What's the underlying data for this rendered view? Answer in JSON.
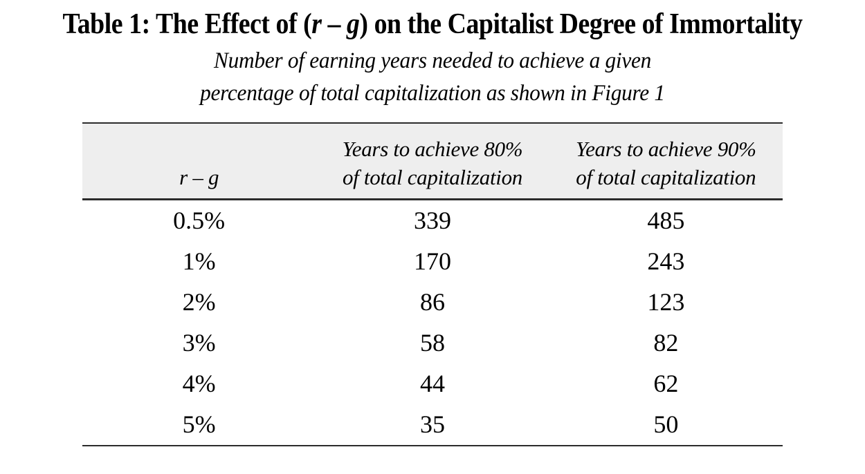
{
  "page": {
    "background": "#ffffff",
    "text_color": "#000000"
  },
  "title": {
    "part1": "Table 1: The Effect of (",
    "var_r": "r",
    "dash": " – ",
    "var_g": "g",
    "part2": ") on the Capitalist Degree of Immortality"
  },
  "subtitle": {
    "line1": "Number of earning years needed to achieve a given",
    "line2": "percentage of total capitalization as shown in Figure 1"
  },
  "table": {
    "header_background": "#eeeeee",
    "rule_color": "#2b2b2b",
    "columns": {
      "col1_label": "r – g",
      "col2_line1": "Years to achieve 80%",
      "col2_line2": "of total capitalization",
      "col3_line1": "Years to achieve 90%",
      "col3_line2": "of total capitalization"
    },
    "rows": [
      {
        "rg": "0.5%",
        "years80": "339",
        "years90": "485"
      },
      {
        "rg": "1%",
        "years80": "170",
        "years90": "243"
      },
      {
        "rg": "2%",
        "years80": "86",
        "years90": "123"
      },
      {
        "rg": "3%",
        "years80": "58",
        "years90": "82"
      },
      {
        "rg": "4%",
        "years80": "44",
        "years90": "62"
      },
      {
        "rg": "5%",
        "years80": "35",
        "years90": "50"
      }
    ]
  },
  "chart_data": {
    "type": "table",
    "title": "Table 1: The Effect of (r – g) on the Capitalist Degree of Immortality",
    "subtitle": "Number of earning years needed to achieve a given percentage of total capitalization as shown in Figure 1",
    "columns": [
      "r – g",
      "Years to achieve 80% of total capitalization",
      "Years to achieve 90% of total capitalization"
    ],
    "rows": [
      [
        "0.5%",
        339,
        485
      ],
      [
        "1%",
        170,
        243
      ],
      [
        "2%",
        86,
        123
      ],
      [
        "3%",
        58,
        82
      ],
      [
        "4%",
        44,
        62
      ],
      [
        "5%",
        35,
        50
      ]
    ]
  }
}
